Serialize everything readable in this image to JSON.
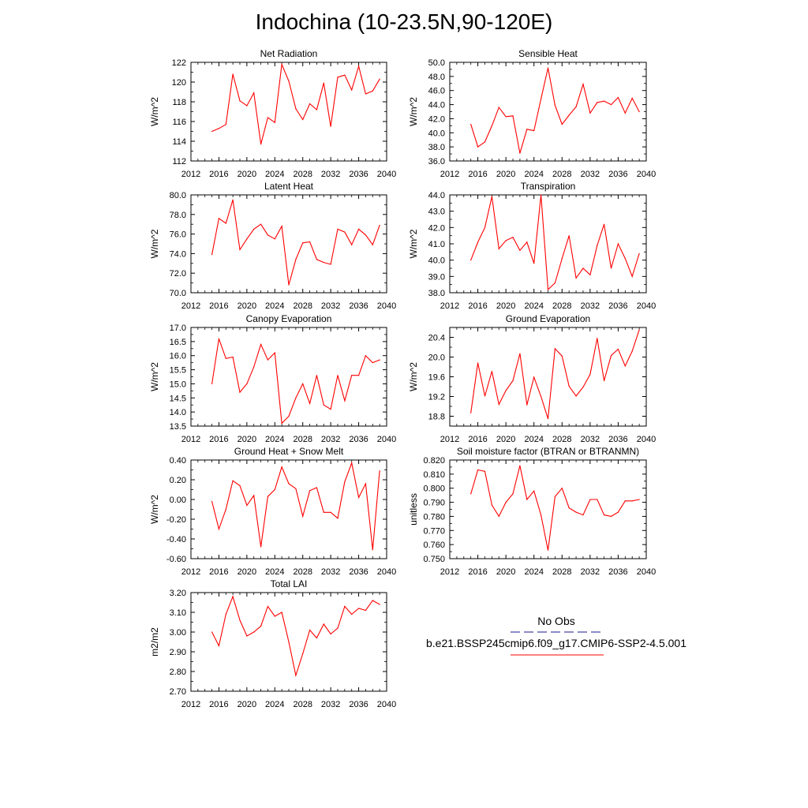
{
  "title": "Indochina (10-23.5N,90-120E)",
  "line_color": "#ff0000",
  "legend": {
    "entries": [
      {
        "label": "No Obs",
        "color": "#1a1a8c",
        "style": "dashed"
      },
      {
        "label": "b.e21.BSSP245cmip6.f09_g17.CMIP6-SSP2-4.5.001",
        "color": "#ff0000",
        "style": "solid"
      }
    ]
  },
  "chart_data": [
    {
      "type": "line",
      "title": "Net Radiation",
      "ylabel": "W/m^2",
      "xlim": [
        2012,
        2040
      ],
      "ylim": [
        112,
        122
      ],
      "xticks": [
        2012,
        2016,
        2020,
        2024,
        2028,
        2032,
        2036,
        2040
      ],
      "yticks": [
        112,
        114,
        116,
        118,
        120,
        122
      ],
      "ytick_labels": [
        "112",
        "114",
        "116",
        "118",
        "120",
        "122"
      ],
      "x": [
        2015,
        2016,
        2017,
        2018,
        2019,
        2020,
        2021,
        2022,
        2023,
        2024,
        2025,
        2026,
        2027,
        2028,
        2029,
        2030,
        2031,
        2032,
        2033,
        2034,
        2035,
        2036,
        2037,
        2038,
        2039
      ],
      "series": [
        {
          "values": [
            115.0,
            115.3,
            115.7,
            120.8,
            118.1,
            117.6,
            118.9,
            113.7,
            116.4,
            115.9,
            121.8,
            120.1,
            117.3,
            116.2,
            117.8,
            117.2,
            119.9,
            115.5,
            120.5,
            120.7,
            119.2,
            121.6,
            118.8,
            119.1,
            120.3
          ]
        }
      ]
    },
    {
      "type": "line",
      "title": "Sensible Heat",
      "ylabel": "W/m^2",
      "xlim": [
        2012,
        2040
      ],
      "ylim": [
        36.0,
        50.0
      ],
      "xticks": [
        2012,
        2016,
        2020,
        2024,
        2028,
        2032,
        2036,
        2040
      ],
      "yticks": [
        36,
        38,
        40,
        42,
        44,
        46,
        48,
        50
      ],
      "ytick_labels": [
        "36.0",
        "38.0",
        "40.0",
        "42.0",
        "44.0",
        "46.0",
        "48.0",
        "50.0"
      ],
      "x": [
        2015,
        2016,
        2017,
        2018,
        2019,
        2020,
        2021,
        2022,
        2023,
        2024,
        2025,
        2026,
        2027,
        2028,
        2029,
        2030,
        2031,
        2032,
        2033,
        2034,
        2035,
        2036,
        2037,
        2038,
        2039
      ],
      "series": [
        {
          "values": [
            41.2,
            38.0,
            38.7,
            41.0,
            43.6,
            42.3,
            42.4,
            37.1,
            40.5,
            40.3,
            44.8,
            49.2,
            43.9,
            41.2,
            42.5,
            43.7,
            46.9,
            42.8,
            44.3,
            44.5,
            44.0,
            45.0,
            42.8,
            44.9,
            43.0
          ]
        }
      ]
    },
    {
      "type": "line",
      "title": "Latent Heat",
      "ylabel": "W/m^2",
      "xlim": [
        2012,
        2040
      ],
      "ylim": [
        70.0,
        80.0
      ],
      "xticks": [
        2012,
        2016,
        2020,
        2024,
        2028,
        2032,
        2036,
        2040
      ],
      "yticks": [
        70,
        72,
        74,
        76,
        78,
        80
      ],
      "ytick_labels": [
        "70.0",
        "72.0",
        "74.0",
        "76.0",
        "78.0",
        "80.0"
      ],
      "x": [
        2015,
        2016,
        2017,
        2018,
        2019,
        2020,
        2021,
        2022,
        2023,
        2024,
        2025,
        2026,
        2027,
        2028,
        2029,
        2030,
        2031,
        2032,
        2033,
        2034,
        2035,
        2036,
        2037,
        2038,
        2039
      ],
      "series": [
        {
          "values": [
            73.9,
            77.6,
            77.1,
            79.5,
            74.4,
            75.5,
            76.5,
            77.0,
            75.9,
            75.5,
            76.8,
            70.8,
            73.4,
            75.1,
            75.2,
            73.4,
            73.1,
            72.9,
            76.5,
            76.2,
            74.9,
            76.5,
            75.9,
            74.9,
            76.9
          ]
        }
      ]
    },
    {
      "type": "line",
      "title": "Transpiration",
      "ylabel": "W/m^2",
      "xlim": [
        2012,
        2040
      ],
      "ylim": [
        38.0,
        44.0
      ],
      "xticks": [
        2012,
        2016,
        2020,
        2024,
        2028,
        2032,
        2036,
        2040
      ],
      "yticks": [
        38,
        39,
        40,
        41,
        42,
        43,
        44
      ],
      "ytick_labels": [
        "38.0",
        "39.0",
        "40.0",
        "41.0",
        "42.0",
        "43.0",
        "44.0"
      ],
      "x": [
        2015,
        2016,
        2017,
        2018,
        2019,
        2020,
        2021,
        2022,
        2023,
        2024,
        2025,
        2026,
        2027,
        2028,
        2029,
        2030,
        2031,
        2032,
        2033,
        2034,
        2035,
        2036,
        2037,
        2038,
        2039
      ],
      "series": [
        {
          "values": [
            40.0,
            41.1,
            42.0,
            43.9,
            40.7,
            41.2,
            41.4,
            40.6,
            41.1,
            39.8,
            44.0,
            38.2,
            38.6,
            40.1,
            41.5,
            38.9,
            39.5,
            39.1,
            40.9,
            42.2,
            39.5,
            41.0,
            40.1,
            39.0,
            40.4
          ]
        }
      ]
    },
    {
      "type": "line",
      "title": "Canopy Evaporation",
      "ylabel": "W/m^2",
      "xlim": [
        2012,
        2040
      ],
      "ylim": [
        13.5,
        17.0
      ],
      "xticks": [
        2012,
        2016,
        2020,
        2024,
        2028,
        2032,
        2036,
        2040
      ],
      "yticks": [
        13.5,
        14.0,
        14.5,
        15.0,
        15.5,
        16.0,
        16.5,
        17.0
      ],
      "ytick_labels": [
        "13.5",
        "14.0",
        "14.5",
        "15.0",
        "15.5",
        "16.0",
        "16.5",
        "17.0"
      ],
      "x": [
        2015,
        2016,
        2017,
        2018,
        2019,
        2020,
        2021,
        2022,
        2023,
        2024,
        2025,
        2026,
        2027,
        2028,
        2029,
        2030,
        2031,
        2032,
        2033,
        2034,
        2035,
        2036,
        2037,
        2038,
        2039
      ],
      "series": [
        {
          "values": [
            15.0,
            16.6,
            15.9,
            15.95,
            14.7,
            15.0,
            15.6,
            16.4,
            15.85,
            16.1,
            13.6,
            13.85,
            14.5,
            15.0,
            14.3,
            15.3,
            14.25,
            14.1,
            15.3,
            14.4,
            15.3,
            15.3,
            16.0,
            15.75,
            15.85
          ]
        }
      ]
    },
    {
      "type": "line",
      "title": "Ground Evaporation",
      "ylabel": "W/m^2",
      "xlim": [
        2012,
        2040
      ],
      "ylim": [
        18.6,
        20.6
      ],
      "xticks": [
        2012,
        2016,
        2020,
        2024,
        2028,
        2032,
        2036,
        2040
      ],
      "yticks": [
        18.8,
        19.2,
        19.6,
        20.0,
        20.4
      ],
      "ytick_labels": [
        "18.8",
        "19.2",
        "19.6",
        "20.0",
        "20.4"
      ],
      "x": [
        2015,
        2016,
        2017,
        2018,
        2019,
        2020,
        2021,
        2022,
        2023,
        2024,
        2025,
        2026,
        2027,
        2028,
        2029,
        2030,
        2031,
        2032,
        2033,
        2034,
        2035,
        2036,
        2037,
        2038,
        2039
      ],
      "series": [
        {
          "values": [
            18.87,
            19.88,
            19.21,
            19.71,
            19.04,
            19.32,
            19.52,
            20.07,
            19.03,
            19.59,
            19.2,
            18.75,
            20.17,
            20.02,
            19.41,
            19.21,
            19.39,
            19.65,
            20.38,
            19.52,
            20.03,
            20.16,
            19.82,
            20.12,
            20.55
          ]
        }
      ]
    },
    {
      "type": "line",
      "title": "Ground Heat + Snow Melt",
      "ylabel": "W/m^2",
      "xlim": [
        2012,
        2040
      ],
      "ylim": [
        -0.6,
        0.4
      ],
      "xticks": [
        2012,
        2016,
        2020,
        2024,
        2028,
        2032,
        2036,
        2040
      ],
      "yticks": [
        -0.6,
        -0.4,
        -0.2,
        0.0,
        0.2,
        0.4
      ],
      "ytick_labels": [
        "-0.60",
        "-0.40",
        "-0.20",
        "0.00",
        "0.20",
        "0.40"
      ],
      "x": [
        2015,
        2016,
        2017,
        2018,
        2019,
        2020,
        2021,
        2022,
        2023,
        2024,
        2025,
        2026,
        2027,
        2028,
        2029,
        2030,
        2031,
        2032,
        2033,
        2034,
        2035,
        2036,
        2037,
        2038,
        2039
      ],
      "series": [
        {
          "values": [
            -0.02,
            -0.3,
            -0.1,
            0.19,
            0.14,
            -0.06,
            0.04,
            -0.48,
            0.03,
            0.1,
            0.33,
            0.16,
            0.11,
            -0.17,
            0.09,
            0.12,
            -0.13,
            -0.13,
            -0.19,
            0.18,
            0.37,
            0.02,
            0.16,
            -0.51,
            0.29
          ]
        }
      ]
    },
    {
      "type": "line",
      "title": "Soil moisture factor (BTRAN or BTRANMN)",
      "ylabel": "unitless",
      "xlim": [
        2012,
        2040
      ],
      "ylim": [
        0.75,
        0.82
      ],
      "xticks": [
        2012,
        2016,
        2020,
        2024,
        2028,
        2032,
        2036,
        2040
      ],
      "yticks": [
        0.75,
        0.76,
        0.77,
        0.78,
        0.79,
        0.8,
        0.81,
        0.82
      ],
      "ytick_labels": [
        "0.750",
        "0.760",
        "0.770",
        "0.780",
        "0.790",
        "0.800",
        "0.810",
        "0.820"
      ],
      "x": [
        2015,
        2016,
        2017,
        2018,
        2019,
        2020,
        2021,
        2022,
        2023,
        2024,
        2025,
        2026,
        2027,
        2028,
        2029,
        2030,
        2031,
        2032,
        2033,
        2034,
        2035,
        2036,
        2037,
        2038,
        2039
      ],
      "series": [
        {
          "values": [
            0.796,
            0.813,
            0.812,
            0.788,
            0.78,
            0.79,
            0.796,
            0.816,
            0.792,
            0.798,
            0.781,
            0.756,
            0.794,
            0.8,
            0.786,
            0.783,
            0.781,
            0.792,
            0.792,
            0.781,
            0.78,
            0.783,
            0.791,
            0.791,
            0.792
          ]
        }
      ]
    },
    {
      "type": "line",
      "title": "Total LAI",
      "ylabel": "m2/m2",
      "xlim": [
        2012,
        2040
      ],
      "ylim": [
        2.7,
        3.2
      ],
      "xticks": [
        2012,
        2016,
        2020,
        2024,
        2028,
        2032,
        2036,
        2040
      ],
      "yticks": [
        2.7,
        2.8,
        2.9,
        3.0,
        3.1,
        3.2
      ],
      "ytick_labels": [
        "2.70",
        "2.80",
        "2.90",
        "3.00",
        "3.10",
        "3.20"
      ],
      "x": [
        2015,
        2016,
        2017,
        2018,
        2019,
        2020,
        2021,
        2022,
        2023,
        2024,
        2025,
        2026,
        2027,
        2028,
        2029,
        2030,
        2031,
        2032,
        2033,
        2034,
        2035,
        2036,
        2037,
        2038,
        2039
      ],
      "series": [
        {
          "values": [
            3.0,
            2.93,
            3.09,
            3.18,
            3.06,
            2.98,
            3.0,
            3.03,
            3.13,
            3.08,
            3.1,
            2.95,
            2.78,
            2.89,
            3.01,
            2.97,
            3.04,
            2.99,
            3.02,
            3.13,
            3.09,
            3.12,
            3.11,
            3.16,
            3.14
          ]
        }
      ]
    }
  ]
}
